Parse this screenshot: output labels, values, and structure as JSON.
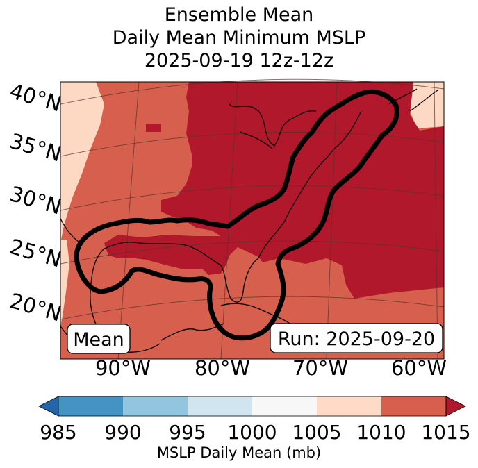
{
  "title": {
    "line1": "Ensemble Mean",
    "line2": "Daily Mean Minimum MSLP",
    "line3": "2025-09-19 12z-12z"
  },
  "map": {
    "lat_labels": [
      "40°N",
      "35°N",
      "30°N",
      "25°N",
      "20°N"
    ],
    "lon_labels": [
      "90°W",
      "80°W",
      "70°W",
      "60°W"
    ],
    "mean_label": "Mean",
    "run_label": "Run: 2025-09-20",
    "field_colors": {
      "1005-1010": "#fdd9c4",
      "1010-1015": "#d6604d",
      "above-1015": "#b2182b"
    },
    "contour_color": "#000000"
  },
  "colorbar": {
    "label": "MSLP Daily Mean (mb)",
    "ticks": [
      "985",
      "990",
      "995",
      "1000",
      "1005",
      "1010",
      "1015"
    ],
    "colors": [
      "#2166ac",
      "#4393c3",
      "#92c5de",
      "#d1e5f0",
      "#f7f7f7",
      "#fddbc7",
      "#d6604d",
      "#b2182b"
    ]
  }
}
